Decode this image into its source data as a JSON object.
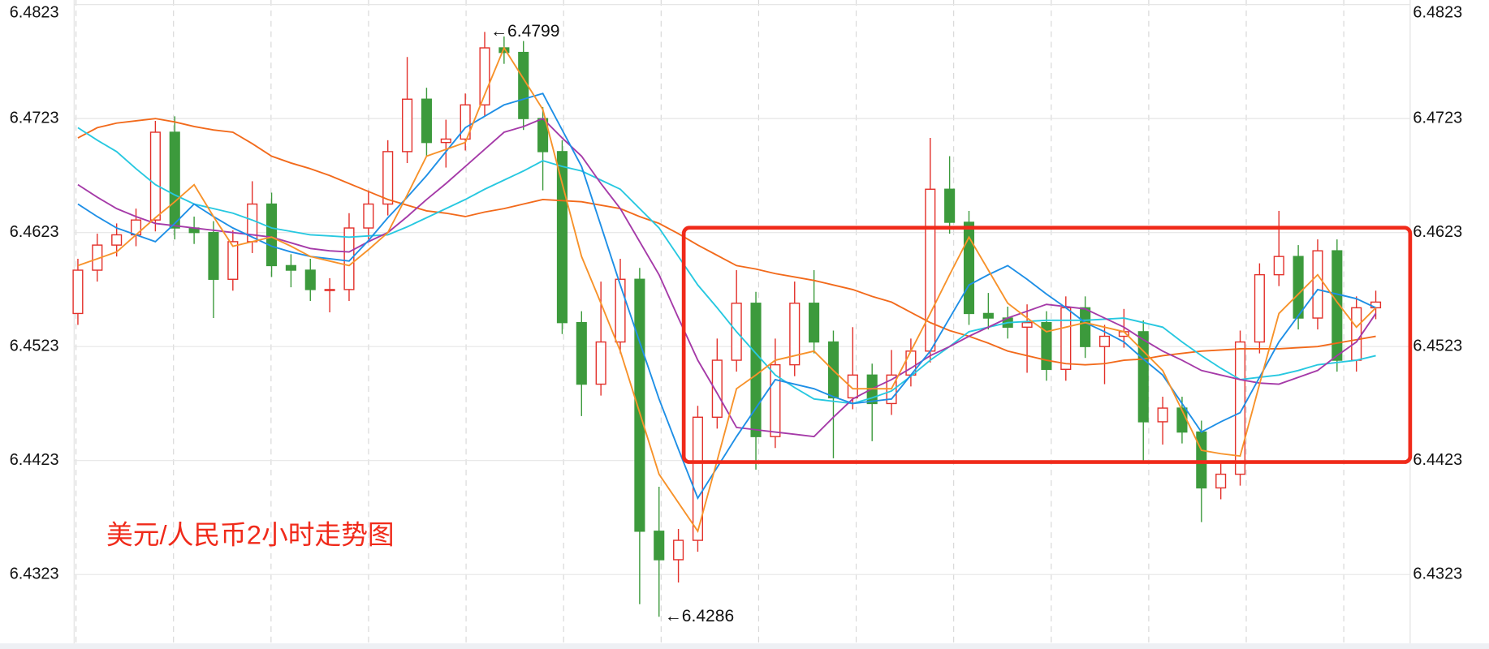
{
  "chart_data": {
    "type": "candlestick",
    "title": "美元/人民币2小时走势图",
    "ylim": [
      6.4261,
      6.4827
    ],
    "yticks": [
      6.4323,
      6.4423,
      6.4523,
      6.4623,
      6.4723,
      6.4823
    ],
    "grid": true,
    "up_color": "#e3302a",
    "down_color": "#3c9a3c",
    "open": [
      6.4552,
      6.459,
      6.4612,
      6.4621,
      6.4634,
      6.4711,
      6.4627,
      6.4623,
      6.4582,
      6.4615,
      6.4648,
      6.4594,
      6.459,
      6.4573,
      6.4573,
      6.4627,
      6.4648,
      6.4694,
      6.474,
      6.4702,
      6.4705,
      6.4735,
      6.4785,
      6.4781,
      6.4723,
      6.4694,
      6.4544,
      6.449,
      6.4527,
      6.4582,
      6.4361,
      6.4336,
      6.4353,
      6.4461,
      6.4511,
      6.4561,
      6.4444,
      6.4507,
      6.4561,
      6.4527,
      6.4478,
      6.4498,
      6.4473,
      6.4498,
      6.4519,
      6.4661,
      6.4632,
      6.4552,
      6.4548,
      6.454,
      6.4544,
      6.4503,
      6.4557,
      6.4523,
      6.4532,
      6.4536,
      6.4457,
      6.4469,
      6.4448,
      6.4399,
      6.4411,
      6.4527,
      6.4586,
      6.4602,
      6.4548,
      6.4607,
      6.4511,
      6.4557
    ],
    "high": [
      6.46,
      6.4622,
      6.4631,
      6.4644,
      6.4721,
      6.4725,
      6.4637,
      6.4633,
      6.4625,
      6.4668,
      6.4658,
      6.4604,
      6.46,
      6.4583,
      6.464,
      6.466,
      6.4704,
      6.4777,
      6.475,
      6.4722,
      6.4745,
      6.4799,
      6.4795,
      6.4791,
      6.4733,
      6.4704,
      6.4554,
      6.458,
      6.46,
      6.4592,
      6.44,
      6.4363,
      6.4471,
      6.453,
      6.459,
      6.4571,
      6.453,
      6.458,
      6.459,
      6.4537,
      6.454,
      6.4508,
      6.452,
      6.453,
      6.4706,
      6.469,
      6.4642,
      6.457,
      6.4558,
      6.456,
      6.4554,
      6.4567,
      6.4567,
      6.4542,
      6.4556,
      6.4546,
      6.4479,
      6.4479,
      6.4458,
      6.4421,
      6.4537,
      6.4596,
      6.4642,
      6.4612,
      6.4617,
      6.4617,
      6.4567,
      6.4572
    ],
    "low": [
      6.4542,
      6.458,
      6.4602,
      6.4611,
      6.4624,
      6.4617,
      6.4613,
      6.4548,
      6.4572,
      6.4605,
      6.4584,
      6.4575,
      6.4563,
      6.4553,
      6.4563,
      6.4617,
      6.4638,
      6.4684,
      6.469,
      6.468,
      6.4695,
      6.4725,
      6.4771,
      6.4713,
      6.466,
      6.4534,
      6.4462,
      6.448,
      6.4517,
      6.4297,
      6.4286,
      6.4316,
      6.4343,
      6.4451,
      6.4501,
      6.4415,
      6.4434,
      6.4497,
      6.4517,
      6.4425,
      6.4468,
      6.444,
      6.4463,
      6.4488,
      6.4509,
      6.4622,
      6.4542,
      6.4538,
      6.453,
      6.45,
      6.4493,
      6.4493,
      6.4513,
      6.449,
      6.4522,
      6.4423,
      6.4437,
      6.4438,
      6.4369,
      6.4389,
      6.4401,
      6.4517,
      6.4576,
      6.4538,
      6.4538,
      6.4501,
      6.4501,
      6.4547
    ],
    "close": [
      6.459,
      6.4612,
      6.4621,
      6.4634,
      6.4711,
      6.4627,
      6.4623,
      6.4582,
      6.4615,
      6.4648,
      6.4594,
      6.459,
      6.4573,
      6.4573,
      6.4627,
      6.4648,
      6.4694,
      6.474,
      6.4702,
      6.4705,
      6.4735,
      6.4785,
      6.4781,
      6.4723,
      6.4694,
      6.4544,
      6.449,
      6.4527,
      6.4582,
      6.4361,
      6.4336,
      6.4353,
      6.4461,
      6.4511,
      6.4561,
      6.4444,
      6.4507,
      6.4561,
      6.4527,
      6.4478,
      6.4498,
      6.4473,
      6.4498,
      6.4519,
      6.4661,
      6.4632,
      6.4552,
      6.4548,
      6.454,
      6.4544,
      6.4503,
      6.4557,
      6.4523,
      6.4532,
      6.4536,
      6.4457,
      6.4469,
      6.4448,
      6.4399,
      6.4411,
      6.4527,
      6.4586,
      6.4602,
      6.4548,
      6.4607,
      6.4511,
      6.4557,
      6.4562
    ],
    "series": [
      {
        "color": "#f26a1b",
        "values": [
          6.4706,
          6.4715,
          6.4719,
          6.4721,
          6.4723,
          6.472,
          6.4716,
          6.4713,
          6.4711,
          6.4701,
          6.469,
          6.4684,
          6.4679,
          6.4673,
          6.4666,
          6.4659,
          6.4652,
          6.4647,
          6.4642,
          6.464,
          6.4637,
          6.4641,
          6.4644,
          6.4648,
          6.4652,
          6.4651,
          6.465,
          6.4647,
          6.4644,
          6.4637,
          6.4631,
          6.4622,
          6.4612,
          6.4603,
          6.4594,
          6.4591,
          6.4587,
          6.4584,
          6.4581,
          6.4577,
          6.4573,
          6.4567,
          6.4562,
          6.4553,
          6.4544,
          6.4537,
          6.4532,
          6.4526,
          6.4519,
          6.4515,
          6.4511,
          6.4508,
          6.4507,
          6.4508,
          6.4511,
          6.4512,
          6.4515,
          6.4517,
          6.4519,
          6.452,
          6.4521,
          6.4521,
          6.4521,
          6.4522,
          6.4523,
          6.4526,
          6.4529,
          6.4532
        ]
      },
      {
        "color": "#27c8e0",
        "values": [
          6.4715,
          6.4704,
          6.4694,
          6.4679,
          6.4665,
          6.4656,
          6.4648,
          6.4644,
          6.464,
          6.4634,
          6.4627,
          6.4624,
          6.4621,
          6.462,
          6.4619,
          6.462,
          6.4621,
          6.4628,
          6.4636,
          6.4644,
          6.4652,
          6.4661,
          6.4669,
          6.4677,
          6.4686,
          6.4681,
          6.4677,
          6.4669,
          6.4661,
          6.4644,
          6.4627,
          6.4602,
          6.4577,
          6.4557,
          6.4536,
          6.4517,
          6.4498,
          6.4487,
          6.4477,
          6.4475,
          6.4473,
          6.4478,
          6.4484,
          6.4497,
          6.4511,
          6.4523,
          6.4536,
          6.454,
          6.4544,
          6.4545,
          6.4546,
          6.4546,
          6.4546,
          6.4547,
          6.4548,
          6.4544,
          6.454,
          6.4527,
          6.4515,
          6.4504,
          6.4494,
          6.4496,
          6.4498,
          6.4502,
          6.4507,
          6.4509,
          6.4511,
          6.4515
        ]
      },
      {
        "color": "#a53aa8",
        "values": [
          6.4665,
          6.4654,
          6.4644,
          6.4637,
          6.4631,
          6.4629,
          6.4627,
          6.4625,
          6.4623,
          6.4621,
          6.4619,
          6.4614,
          6.4609,
          6.4607,
          6.4606,
          6.4615,
          6.4623,
          6.4637,
          6.4652,
          6.4666,
          6.4681,
          6.4696,
          6.4711,
          6.4716,
          6.4723,
          6.4706,
          6.469,
          6.4666,
          6.4644,
          6.4615,
          6.4586,
          6.4548,
          6.4511,
          6.4482,
          6.4452,
          6.445,
          6.4448,
          6.4446,
          6.4444,
          6.4461,
          6.4477,
          6.4486,
          6.4494,
          6.4504,
          6.4515,
          6.4523,
          6.4532,
          6.454,
          6.4548,
          6.4554,
          6.456,
          6.4558,
          6.4556,
          6.4548,
          6.454,
          6.4529,
          6.4519,
          6.4511,
          6.4502,
          6.4498,
          6.4494,
          6.4491,
          6.449,
          6.4496,
          6.4502,
          6.4515,
          6.4527,
          6.4552
        ]
      },
      {
        "color": "#1e8fe6",
        "values": [
          6.4648,
          6.4637,
          6.4627,
          6.4621,
          6.4615,
          6.4631,
          6.4648,
          6.4637,
          6.4627,
          6.4619,
          6.4611,
          6.4606,
          6.4602,
          6.46,
          6.4598,
          6.4616,
          6.4636,
          6.4654,
          6.4673,
          6.4694,
          6.4715,
          6.4725,
          6.4735,
          6.474,
          6.4745,
          6.4713,
          6.4681,
          6.4629,
          6.4577,
          6.4527,
          6.4477,
          6.4433,
          6.439,
          6.4417,
          6.4444,
          6.4469,
          6.4494,
          6.449,
          6.4486,
          6.4479,
          6.4473,
          6.4475,
          6.4477,
          6.4498,
          6.4519,
          6.4548,
          6.4577,
          6.4586,
          6.4594,
          6.4582,
          6.4569,
          6.4557,
          6.4544,
          6.4536,
          6.4527,
          6.4512,
          6.4498,
          6.4473,
          6.4448,
          6.4457,
          6.4465,
          6.4496,
          6.4527,
          6.455,
          6.4573,
          6.4569,
          6.4565,
          6.4557
        ]
      },
      {
        "color": "#f7922a",
        "values": [
          6.4594,
          6.46,
          6.4606,
          6.4621,
          6.4636,
          6.465,
          6.4665,
          6.4637,
          6.4611,
          6.4615,
          6.4619,
          6.4611,
          6.4602,
          6.4598,
          6.4594,
          6.4608,
          6.4623,
          6.4656,
          6.469,
          6.4696,
          6.4702,
          6.4744,
          6.4785,
          6.4758,
          6.4731,
          6.4666,
          6.4602,
          6.4561,
          6.4519,
          6.4465,
          6.4411,
          6.4386,
          6.4361,
          6.4423,
          6.4486,
          6.4498,
          6.4511,
          6.4515,
          6.4519,
          6.4502,
          6.4486,
          6.4486,
          6.4486,
          6.4519,
          6.4552,
          6.4586,
          6.4619,
          6.459,
          6.4561,
          6.4548,
          6.4536,
          6.454,
          6.4544,
          6.454,
          6.4536,
          6.4519,
          6.4502,
          6.4467,
          6.4432,
          6.4429,
          6.4427,
          6.449,
          6.4552,
          6.4569,
          6.4586,
          6.4562,
          6.454,
          6.4557
        ]
      }
    ],
    "annotations": [
      {
        "text": "←6.4799",
        "value": 6.4799
      },
      {
        "text": "←6.4286",
        "value": 6.4286
      }
    ]
  }
}
